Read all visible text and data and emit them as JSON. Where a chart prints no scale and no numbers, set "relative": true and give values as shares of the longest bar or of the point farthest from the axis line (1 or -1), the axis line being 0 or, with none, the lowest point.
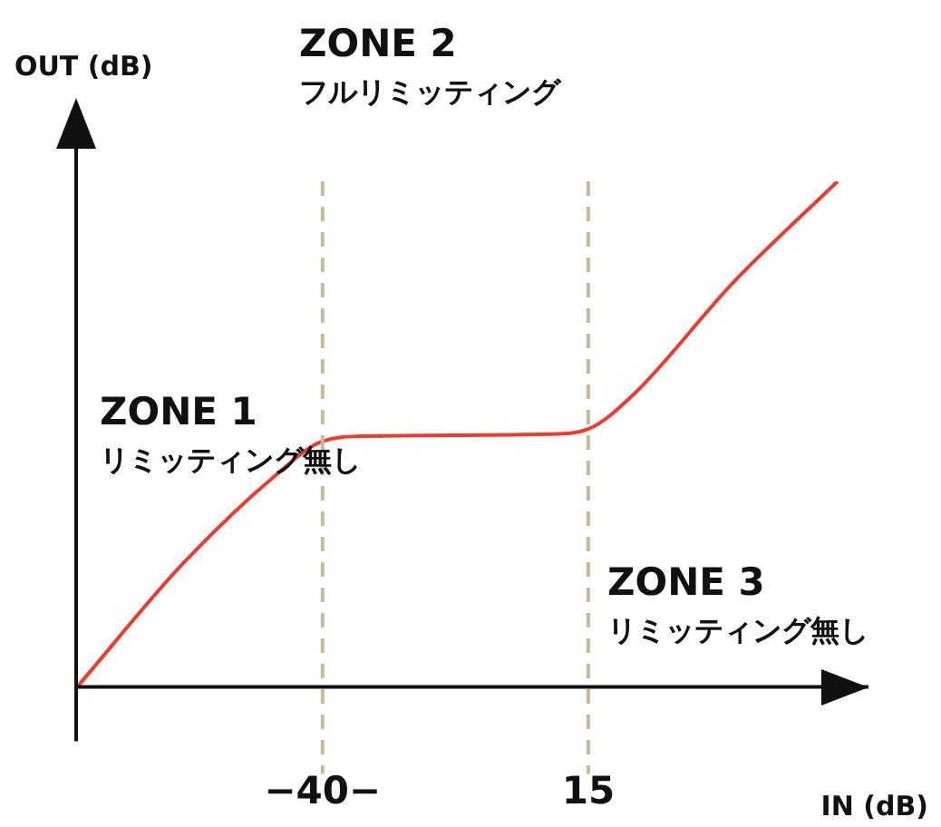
{
  "chart_data": {
    "type": "line",
    "relative": true,
    "xlabel": "IN (dB)",
    "ylabel": "OUT (dB)",
    "x": [
      -90.8,
      -68.8,
      -49.9,
      -40,
      -30.9,
      7,
      15,
      24.1,
      45,
      66.6
    ],
    "series": [
      {
        "color": "#ee3b2e",
        "values": [
          0,
          0.245,
          0.417,
          0.486,
          0.496,
          0.5,
          0.51,
          0.576,
          0.8,
          1
        ]
      }
    ],
    "xlim": [
      -91,
      73
    ],
    "xticks": [
      {
        "value": -40,
        "label": "−40−"
      },
      15
    ],
    "ref_lines": [
      {
        "axis": "x",
        "value": -40,
        "color": "#c9b99b",
        "line_style": "dashed"
      },
      {
        "axis": "x",
        "value": 15,
        "color": "#c9b99b",
        "line_style": "dashed"
      }
    ],
    "annotations": [
      "ZONE 2\nフルリミッティング",
      "ZONE 1\nリミッティング無し",
      "ZONE 3\nリミッティング無し"
    ],
    "marker": "none",
    "line_style": "solid",
    "grid": false,
    "legend": false
  }
}
